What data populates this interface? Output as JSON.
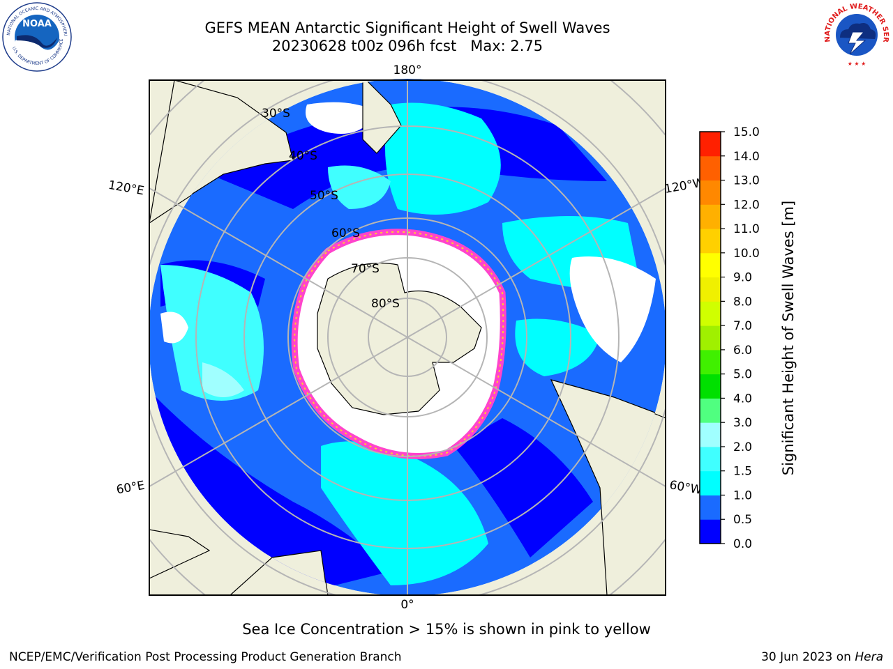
{
  "header": {
    "title_line1": "GEFS MEAN Antarctic Significant Height of Swell Waves",
    "title_line2": "20230628 t00z 096h fcst   Max: 2.75"
  },
  "logos": {
    "noaa_label": "NOAA",
    "noaa_ring_text": "NATIONAL OCEANIC AND ATMOSPHERIC ADMINISTRATION",
    "noaa_ring_bottom": "U.S. DEPARTMENT OF COMMERCE",
    "nws_ring_text": "NATIONAL WEATHER SERVICE"
  },
  "map": {
    "projection": "south-polar-stereographic",
    "longitude_labels": [
      "180°",
      "120°E",
      "120°W",
      "60°E",
      "60°W",
      "0°"
    ],
    "latitude_labels": [
      "30°S",
      "40°S",
      "50°S",
      "60°S",
      "70°S",
      "80°S"
    ],
    "colors": {
      "land": "#efefdc",
      "ocean_low": "#0000ff",
      "ocean_mid": "#1a6bff",
      "ocean_cyan": "#00ffff",
      "ocean_lightcyan": "#66ffff",
      "sea_ice": "#ffffff",
      "ice_edge": "#ff44cc",
      "grid": "#b5b5b5"
    }
  },
  "colorbar": {
    "label": "Significant Height of Swell Waves [m]",
    "ticks": [
      "0.0",
      "0.5",
      "1.0",
      "1.5",
      "2.0",
      "3.0",
      "4.0",
      "5.0",
      "6.0",
      "7.0",
      "8.0",
      "9.0",
      "10.0",
      "11.0",
      "12.0",
      "13.0",
      "14.0",
      "15.0"
    ],
    "colors": [
      "#0000ff",
      "#1a6bff",
      "#00ffff",
      "#40ffff",
      "#a0ffff",
      "#50ff80",
      "#00e000",
      "#40f000",
      "#a0f000",
      "#d0ff00",
      "#f0f000",
      "#ffff00",
      "#ffd000",
      "#ffb000",
      "#ff8800",
      "#ff6000",
      "#ff2000"
    ]
  },
  "footer": {
    "note": "Sea Ice Concentration > 15% is shown in pink to yellow",
    "left": "NCEP/EMC/Verification Post Processing Product Generation Branch",
    "right_date": "30 Jun 2023 on",
    "right_host": "Hera"
  }
}
